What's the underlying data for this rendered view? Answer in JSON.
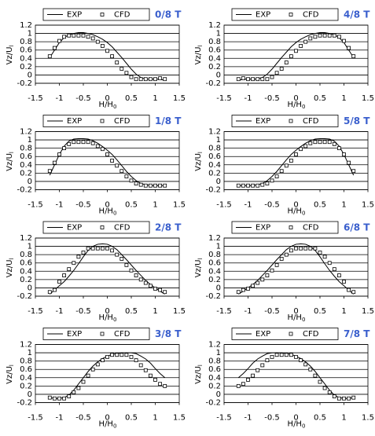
{
  "chart_data": [
    {
      "type": "line",
      "title": "0/8 T",
      "xlabel": {
        "text": "H/H",
        "sub": "0"
      },
      "ylabel": {
        "text": "Vz/U",
        "sub": "l"
      },
      "x": [
        -1.2,
        -1.1,
        -1.0,
        -0.9,
        -0.8,
        -0.7,
        -0.6,
        -0.5,
        -0.4,
        -0.3,
        -0.2,
        -0.1,
        0,
        0.1,
        0.2,
        0.3,
        0.4,
        0.5,
        0.6,
        0.7,
        0.8,
        0.9,
        1.0,
        1.1,
        1.2
      ],
      "series": [
        {
          "name": "EXP",
          "color": "#000000",
          "style": "line",
          "values": [
            0.42,
            0.6,
            0.78,
            0.9,
            0.97,
            1.0,
            1.02,
            1.02,
            1.0,
            0.97,
            0.92,
            0.86,
            0.78,
            0.68,
            0.55,
            0.42,
            0.28,
            0.14,
            0.02,
            -0.06,
            -0.1,
            -0.1,
            -0.1,
            -0.1,
            -0.13
          ]
        },
        {
          "name": "CFD",
          "color": "#000000",
          "style": "marker",
          "values": [
            0.45,
            0.65,
            0.82,
            0.92,
            0.95,
            0.95,
            0.95,
            0.95,
            0.92,
            0.88,
            0.8,
            0.7,
            0.58,
            0.45,
            0.3,
            0.15,
            0.05,
            -0.05,
            -0.1,
            -0.1,
            -0.1,
            -0.1,
            -0.1,
            -0.08,
            -0.1
          ]
        }
      ],
      "xlim": [
        -1.5,
        1.5
      ],
      "xticks": [
        -1.5,
        -1,
        -0.5,
        0,
        0.5,
        1,
        1.5
      ],
      "ylim": [
        -0.2,
        1.2
      ],
      "yticks": [
        -0.2,
        0,
        0.2,
        0.4,
        0.6,
        0.8,
        1,
        1.2
      ],
      "grid": true
    },
    {
      "type": "line",
      "title": "1/8 T",
      "xlabel": {
        "text": "H/H",
        "sub": "0"
      },
      "ylabel": {
        "text": "Vz/U",
        "sub": "l"
      },
      "x": [
        -1.2,
        -1.1,
        -1.0,
        -0.9,
        -0.8,
        -0.7,
        -0.6,
        -0.5,
        -0.4,
        -0.3,
        -0.2,
        -0.1,
        0,
        0.1,
        0.2,
        0.3,
        0.4,
        0.5,
        0.6,
        0.7,
        0.8,
        0.9,
        1.0,
        1.1,
        1.2
      ],
      "series": [
        {
          "name": "EXP",
          "color": "#000000",
          "style": "line",
          "values": [
            0.15,
            0.4,
            0.65,
            0.85,
            0.97,
            1.02,
            1.03,
            1.03,
            1.02,
            0.98,
            0.92,
            0.84,
            0.75,
            0.65,
            0.52,
            0.38,
            0.24,
            0.12,
            0.02,
            -0.05,
            -0.08,
            -0.1,
            -0.1,
            -0.1,
            -0.1
          ]
        },
        {
          "name": "CFD",
          "color": "#000000",
          "style": "marker",
          "values": [
            0.25,
            0.45,
            0.65,
            0.8,
            0.9,
            0.95,
            0.95,
            0.95,
            0.95,
            0.92,
            0.85,
            0.78,
            0.65,
            0.5,
            0.38,
            0.25,
            0.12,
            0.02,
            -0.05,
            -0.08,
            -0.1,
            -0.1,
            -0.1,
            -0.1,
            -0.1
          ]
        }
      ],
      "xlim": [
        -1.5,
        1.5
      ],
      "xticks": [
        -1.5,
        -1,
        -0.5,
        0,
        0.5,
        1,
        1.5
      ],
      "ylim": [
        -0.2,
        1.2
      ],
      "yticks": [
        -0.2,
        0,
        0.2,
        0.4,
        0.6,
        0.8,
        1,
        1.2
      ],
      "grid": true
    },
    {
      "type": "line",
      "title": "2/8 T",
      "xlabel": {
        "text": "H/H",
        "sub": "0"
      },
      "ylabel": {
        "text": "Vz/U",
        "sub": "l"
      },
      "x": [
        -1.2,
        -1.1,
        -1.0,
        -0.9,
        -0.8,
        -0.7,
        -0.6,
        -0.5,
        -0.4,
        -0.3,
        -0.2,
        -0.1,
        0,
        0.1,
        0.2,
        0.3,
        0.4,
        0.5,
        0.6,
        0.7,
        0.8,
        0.9,
        1.0,
        1.1,
        1.2
      ],
      "series": [
        {
          "name": "EXP",
          "color": "#000000",
          "style": "line",
          "values": [
            -0.15,
            -0.05,
            0.05,
            0.15,
            0.28,
            0.42,
            0.58,
            0.75,
            0.9,
            1.0,
            1.05,
            1.06,
            1.05,
            1.0,
            0.92,
            0.8,
            0.68,
            0.55,
            0.42,
            0.3,
            0.18,
            0.08,
            0,
            -0.08,
            -0.15
          ]
        },
        {
          "name": "CFD",
          "color": "#000000",
          "style": "marker",
          "values": [
            -0.1,
            -0.05,
            0.15,
            0.3,
            0.45,
            0.6,
            0.75,
            0.85,
            0.95,
            0.95,
            0.95,
            0.95,
            0.95,
            0.9,
            0.8,
            0.7,
            0.55,
            0.42,
            0.3,
            0.2,
            0.12,
            0.05,
            -0.02,
            -0.05,
            -0.1
          ]
        }
      ],
      "xlim": [
        -1.5,
        1.5
      ],
      "xticks": [
        -1.5,
        -1,
        -0.5,
        0,
        0.5,
        1,
        1.5
      ],
      "ylim": [
        -0.2,
        1.2
      ],
      "yticks": [
        -0.2,
        0,
        0.2,
        0.4,
        0.6,
        0.8,
        1,
        1.2
      ],
      "grid": true
    },
    {
      "type": "line",
      "title": "3/8 T",
      "xlabel": {
        "text": "H/H",
        "sub": "0"
      },
      "ylabel": {
        "text": "Vz/U",
        "sub": "l"
      },
      "x": [
        -1.2,
        -1.1,
        -1.0,
        -0.9,
        -0.8,
        -0.7,
        -0.6,
        -0.5,
        -0.4,
        -0.3,
        -0.2,
        -0.1,
        0,
        0.1,
        0.2,
        0.3,
        0.4,
        0.5,
        0.6,
        0.7,
        0.8,
        0.9,
        1.0,
        1.1,
        1.2
      ],
      "series": [
        {
          "name": "EXP",
          "color": "#000000",
          "style": "line",
          "values": [
            -0.08,
            -0.1,
            -0.1,
            -0.08,
            -0.02,
            0.1,
            0.25,
            0.4,
            0.55,
            0.68,
            0.78,
            0.86,
            0.92,
            0.96,
            0.98,
            1.0,
            1.0,
            1.0,
            0.98,
            0.92,
            0.85,
            0.75,
            0.62,
            0.5,
            0.4
          ]
        },
        {
          "name": "CFD",
          "color": "#000000",
          "style": "marker",
          "values": [
            -0.08,
            -0.1,
            -0.1,
            -0.1,
            -0.05,
            0.05,
            0.15,
            0.3,
            0.45,
            0.6,
            0.72,
            0.82,
            0.9,
            0.95,
            0.95,
            0.95,
            0.95,
            0.9,
            0.82,
            0.7,
            0.58,
            0.45,
            0.35,
            0.25,
            0.2
          ]
        }
      ],
      "xlim": [
        -1.5,
        1.5
      ],
      "xticks": [
        -1.5,
        -1,
        -0.5,
        0,
        0.5,
        1,
        1.5
      ],
      "ylim": [
        -0.2,
        1.2
      ],
      "yticks": [
        -0.2,
        0,
        0.2,
        0.4,
        0.6,
        0.8,
        1,
        1.2
      ],
      "grid": true
    },
    {
      "type": "line",
      "title": "4/8 T",
      "xlabel": {
        "text": "H/H",
        "sub": "0"
      },
      "ylabel": {
        "text": "Vz/U",
        "sub": "l"
      },
      "x": [
        -1.2,
        -1.1,
        -1.0,
        -0.9,
        -0.8,
        -0.7,
        -0.6,
        -0.5,
        -0.4,
        -0.3,
        -0.2,
        -0.1,
        0,
        0.1,
        0.2,
        0.3,
        0.4,
        0.5,
        0.6,
        0.7,
        0.8,
        0.9,
        1.0,
        1.1,
        1.2
      ],
      "series": [
        {
          "name": "EXP",
          "color": "#000000",
          "style": "line",
          "values": [
            -0.13,
            -0.1,
            -0.1,
            -0.1,
            -0.1,
            -0.06,
            0.02,
            0.14,
            0.28,
            0.42,
            0.55,
            0.68,
            0.78,
            0.86,
            0.92,
            0.97,
            1.0,
            1.02,
            1.02,
            1.0,
            0.97,
            0.9,
            0.78,
            0.6,
            0.42
          ]
        },
        {
          "name": "CFD",
          "color": "#000000",
          "style": "marker",
          "values": [
            -0.1,
            -0.08,
            -0.1,
            -0.1,
            -0.1,
            -0.1,
            -0.1,
            -0.05,
            0.05,
            0.15,
            0.3,
            0.45,
            0.58,
            0.7,
            0.8,
            0.88,
            0.92,
            0.95,
            0.95,
            0.95,
            0.95,
            0.92,
            0.82,
            0.65,
            0.45
          ]
        }
      ],
      "xlim": [
        -1.5,
        1.5
      ],
      "xticks": [
        -1.5,
        -1,
        -0.5,
        0,
        0.5,
        1,
        1.5
      ],
      "ylim": [
        -0.2,
        1.2
      ],
      "yticks": [
        -0.2,
        0,
        0.2,
        0.4,
        0.6,
        0.8,
        1,
        1.2
      ],
      "grid": true
    },
    {
      "type": "line",
      "title": "5/8 T",
      "xlabel": {
        "text": "H/H",
        "sub": "0"
      },
      "ylabel": {
        "text": "Vz/U",
        "sub": "l"
      },
      "x": [
        -1.2,
        -1.1,
        -1.0,
        -0.9,
        -0.8,
        -0.7,
        -0.6,
        -0.5,
        -0.4,
        -0.3,
        -0.2,
        -0.1,
        0,
        0.1,
        0.2,
        0.3,
        0.4,
        0.5,
        0.6,
        0.7,
        0.8,
        0.9,
        1.0,
        1.1,
        1.2
      ],
      "series": [
        {
          "name": "EXP",
          "color": "#000000",
          "style": "line",
          "values": [
            -0.1,
            -0.1,
            -0.1,
            -0.1,
            -0.08,
            -0.05,
            0.02,
            0.12,
            0.24,
            0.38,
            0.52,
            0.65,
            0.75,
            0.84,
            0.92,
            0.98,
            1.02,
            1.03,
            1.03,
            1.02,
            0.97,
            0.85,
            0.65,
            0.4,
            0.15
          ]
        },
        {
          "name": "CFD",
          "color": "#000000",
          "style": "marker",
          "values": [
            -0.1,
            -0.1,
            -0.1,
            -0.1,
            -0.1,
            -0.08,
            -0.05,
            0.02,
            0.12,
            0.25,
            0.38,
            0.5,
            0.65,
            0.78,
            0.85,
            0.92,
            0.95,
            0.95,
            0.95,
            0.95,
            0.9,
            0.8,
            0.65,
            0.45,
            0.25
          ]
        }
      ],
      "xlim": [
        -1.5,
        1.5
      ],
      "xticks": [
        -1.5,
        -1,
        -0.5,
        0,
        0.5,
        1,
        1.5
      ],
      "ylim": [
        -0.2,
        1.2
      ],
      "yticks": [
        -0.2,
        0,
        0.2,
        0.4,
        0.6,
        0.8,
        1,
        1.2
      ],
      "grid": true
    },
    {
      "type": "line",
      "title": "6/8 T",
      "xlabel": {
        "text": "H/H",
        "sub": "0"
      },
      "ylabel": {
        "text": "Vz/U",
        "sub": "l"
      },
      "x": [
        -1.2,
        -1.1,
        -1.0,
        -0.9,
        -0.8,
        -0.7,
        -0.6,
        -0.5,
        -0.4,
        -0.3,
        -0.2,
        -0.1,
        0,
        0.1,
        0.2,
        0.3,
        0.4,
        0.5,
        0.6,
        0.7,
        0.8,
        0.9,
        1.0,
        1.1,
        1.2
      ],
      "series": [
        {
          "name": "EXP",
          "color": "#000000",
          "style": "line",
          "values": [
            -0.15,
            -0.08,
            0,
            0.08,
            0.18,
            0.3,
            0.42,
            0.55,
            0.68,
            0.8,
            0.92,
            1.0,
            1.05,
            1.06,
            1.05,
            1.0,
            0.9,
            0.75,
            0.58,
            0.42,
            0.28,
            0.15,
            0.05,
            -0.05,
            -0.15
          ]
        },
        {
          "name": "CFD",
          "color": "#000000",
          "style": "marker",
          "values": [
            -0.1,
            -0.05,
            -0.02,
            0.05,
            0.12,
            0.2,
            0.3,
            0.42,
            0.55,
            0.7,
            0.8,
            0.9,
            0.95,
            0.95,
            0.95,
            0.95,
            0.95,
            0.85,
            0.75,
            0.6,
            0.45,
            0.3,
            0.15,
            -0.05,
            -0.1
          ]
        }
      ],
      "xlim": [
        -1.5,
        1.5
      ],
      "xticks": [
        -1.5,
        -1,
        -0.5,
        0,
        0.5,
        1,
        1.5
      ],
      "ylim": [
        -0.2,
        1.2
      ],
      "yticks": [
        -0.2,
        0,
        0.2,
        0.4,
        0.6,
        0.8,
        1,
        1.2
      ],
      "grid": true
    },
    {
      "type": "line",
      "title": "7/8 T",
      "xlabel": {
        "text": "H/H",
        "sub": "0"
      },
      "ylabel": {
        "text": "Vz/U",
        "sub": "l"
      },
      "x": [
        -1.2,
        -1.1,
        -1.0,
        -0.9,
        -0.8,
        -0.7,
        -0.6,
        -0.5,
        -0.4,
        -0.3,
        -0.2,
        -0.1,
        0,
        0.1,
        0.2,
        0.3,
        0.4,
        0.5,
        0.6,
        0.7,
        0.8,
        0.9,
        1.0,
        1.1,
        1.2
      ],
      "series": [
        {
          "name": "EXP",
          "color": "#000000",
          "style": "line",
          "values": [
            0.4,
            0.5,
            0.62,
            0.75,
            0.85,
            0.92,
            0.98,
            1.0,
            1.0,
            1.0,
            0.98,
            0.96,
            0.92,
            0.86,
            0.78,
            0.68,
            0.55,
            0.4,
            0.25,
            0.1,
            -0.02,
            -0.08,
            -0.1,
            -0.1,
            -0.08
          ]
        },
        {
          "name": "CFD",
          "color": "#000000",
          "style": "marker",
          "values": [
            0.2,
            0.25,
            0.35,
            0.45,
            0.58,
            0.7,
            0.82,
            0.9,
            0.95,
            0.95,
            0.95,
            0.95,
            0.9,
            0.82,
            0.72,
            0.6,
            0.45,
            0.3,
            0.15,
            0.05,
            -0.05,
            -0.1,
            -0.1,
            -0.1,
            -0.08
          ]
        }
      ],
      "xlim": [
        -1.5,
        1.5
      ],
      "xticks": [
        -1.5,
        -1,
        -0.5,
        0,
        0.5,
        1,
        1.5
      ],
      "ylim": [
        -0.2,
        1.2
      ],
      "yticks": [
        -0.2,
        0,
        0.2,
        0.4,
        0.6,
        0.8,
        1,
        1.2
      ],
      "grid": true
    }
  ]
}
